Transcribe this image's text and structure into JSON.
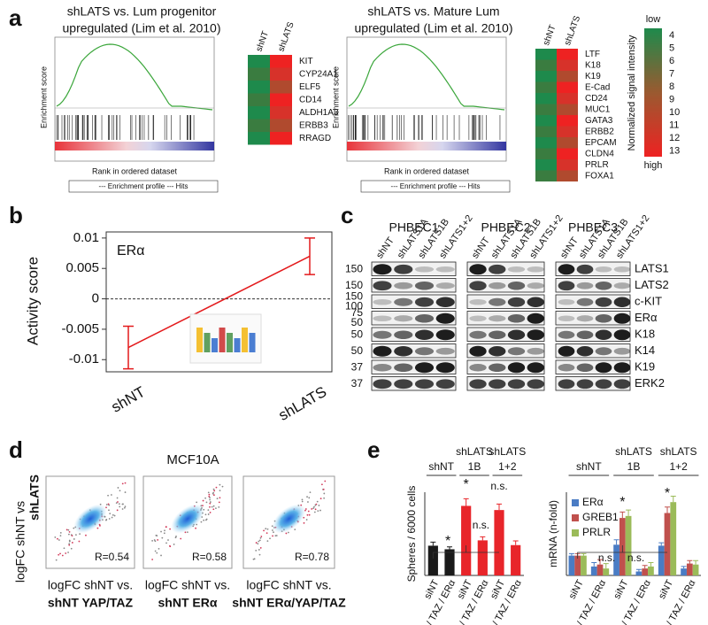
{
  "panel_a": {
    "label": "a",
    "gsea": [
      {
        "title": [
          "shLATS vs. Lum progenitor",
          "upregulated (Lim et al. 2010)"
        ],
        "y_label": "Enrichment score",
        "x_label": "Rank in ordered dataset",
        "legend": "--- Enrichment profile --- Hits",
        "columns": [
          "shNT",
          "shLATS"
        ],
        "genes": [
          "KIT",
          "CYP24A1",
          "ELF5",
          "CD14",
          "ALDH1A3",
          "ERBB3",
          "RRAGD"
        ]
      },
      {
        "title": [
          "shLATS vs. Mature Lum",
          "upregulated (Lim et al. 2010)"
        ],
        "y_label": "Enrichment score",
        "x_label": "Rank in ordered dataset",
        "legend": "--- Enrichment profile --- Hits",
        "columns": [
          "shNT",
          "shLATS"
        ],
        "genes": [
          "LTF",
          "K18",
          "K19",
          "E-Cad",
          "CD24",
          "MUC1",
          "GATA3",
          "ERBB2",
          "EPCAM",
          "CLDN4",
          "PRLR",
          "FOXA1"
        ]
      }
    ],
    "scale": {
      "title": "Normalized signal intensity",
      "low": "low",
      "high": "high",
      "ticks": [
        "4",
        "5",
        "6",
        "7",
        "8",
        "9",
        "10",
        "11",
        "12",
        "13"
      ]
    }
  },
  "panel_b": {
    "label": "b"
  },
  "panel_c": {
    "label": "c",
    "cell_lines": [
      "PHBEC1",
      "PHBEC2",
      "PHBEC3"
    ],
    "lanes": [
      "shNT",
      "shLATS1A",
      "shLATS1B",
      "shLATS1+2"
    ],
    "rows": [
      {
        "markers": [
          "150"
        ],
        "protein": "LATS1"
      },
      {
        "markers": [
          "150"
        ],
        "protein": "LATS2"
      },
      {
        "markers": [
          "150",
          "100"
        ],
        "protein": "c-KIT"
      },
      {
        "markers": [
          "75",
          "50"
        ],
        "protein": "ERα"
      },
      {
        "markers": [
          "50"
        ],
        "protein": "K18"
      },
      {
        "markers": [
          "50"
        ],
        "protein": "K14"
      },
      {
        "markers": [
          "37"
        ],
        "protein": "K19"
      },
      {
        "markers": [
          "37"
        ],
        "protein": "ERK2"
      }
    ]
  },
  "panel_d": {
    "label": "d",
    "title": "MCF10A",
    "y_label": [
      "logFC shNT vs",
      "shLATS"
    ],
    "plots": [
      {
        "r": "R=0.54",
        "x_label": [
          "logFC shNT vs.",
          "shNT YAP/TAZ"
        ]
      },
      {
        "r": "R=0.58",
        "x_label": [
          "logFC shNT vs.",
          "shNT ERα"
        ]
      },
      {
        "r": "R=0.78",
        "x_label": [
          "logFC shNT vs.",
          "shNT ERα/YAP/TAZ"
        ]
      }
    ]
  },
  "panel_e": {
    "label": "e"
  },
  "chart_data": [
    {
      "type": "line",
      "title": "ERα",
      "y_label": "Activity score",
      "categories": [
        "shNT",
        "shLATS"
      ],
      "values": [
        -0.008,
        0.007
      ],
      "errors": [
        0.0035,
        0.003
      ],
      "color": "#e31a1c",
      "ylim": [
        -0.012,
        0.011
      ],
      "yticks": [
        0.01,
        0.005,
        0,
        -0.005,
        -0.01
      ]
    },
    {
      "type": "bar",
      "y_label": "Spheres / 6000 cells",
      "group_labels": [
        [
          "shNT"
        ],
        [
          "shLATS",
          "1B"
        ],
        [
          "shLATS",
          "1+2"
        ]
      ],
      "categories": [
        "siNT",
        "siYAP / TAZ / ERα",
        "siNT",
        "siYAP / TAZ / ERα",
        "siNT",
        "siYAP / TAZ / ERα"
      ],
      "values": [
        50,
        44,
        117,
        59,
        110,
        51
      ],
      "errors": [
        6,
        4,
        12,
        6,
        10,
        7
      ],
      "colors": [
        "#1a1a1a",
        "#1a1a1a",
        "#e8252a",
        "#e8252a",
        "#e8252a",
        "#e8252a"
      ],
      "ylim": [
        0,
        140
      ],
      "annotations": [
        "*",
        "n.s.",
        "*",
        "n.s."
      ]
    },
    {
      "type": "grouped_bar",
      "y_label": "mRNA (n-fold)",
      "group_labels": [
        [
          "shNT"
        ],
        [
          "shLATS",
          "1B"
        ],
        [
          "shLATS",
          "1+2"
        ]
      ],
      "categories": [
        "siNT",
        "siYAP / TAZ / ERα",
        "siNT",
        "siYAP / TAZ / ERα",
        "siNT",
        "siYAP / TAZ / ERα"
      ],
      "series": [
        {
          "name": "ERα",
          "color": "#4a7cc4",
          "values": [
            1.0,
            0.45,
            1.55,
            0.2,
            1.5,
            0.35
          ],
          "errors": [
            0.1,
            0.2,
            0.25,
            0.1,
            0.15,
            0.1
          ]
        },
        {
          "name": "GREB1",
          "color": "#c0504d",
          "values": [
            1.0,
            0.55,
            2.9,
            0.35,
            3.15,
            0.6
          ],
          "errors": [
            0.1,
            0.25,
            0.3,
            0.15,
            0.3,
            0.15
          ]
        },
        {
          "name": "PRLR",
          "color": "#9bbb59",
          "values": [
            1.0,
            0.35,
            3.0,
            0.45,
            3.7,
            0.55
          ],
          "errors": [
            0.1,
            0.25,
            0.3,
            0.2,
            0.3,
            0.2
          ]
        }
      ],
      "ylim": [
        0,
        4.2
      ],
      "annotations": [
        "*",
        "*",
        "n.s.",
        "n.s."
      ]
    }
  ]
}
